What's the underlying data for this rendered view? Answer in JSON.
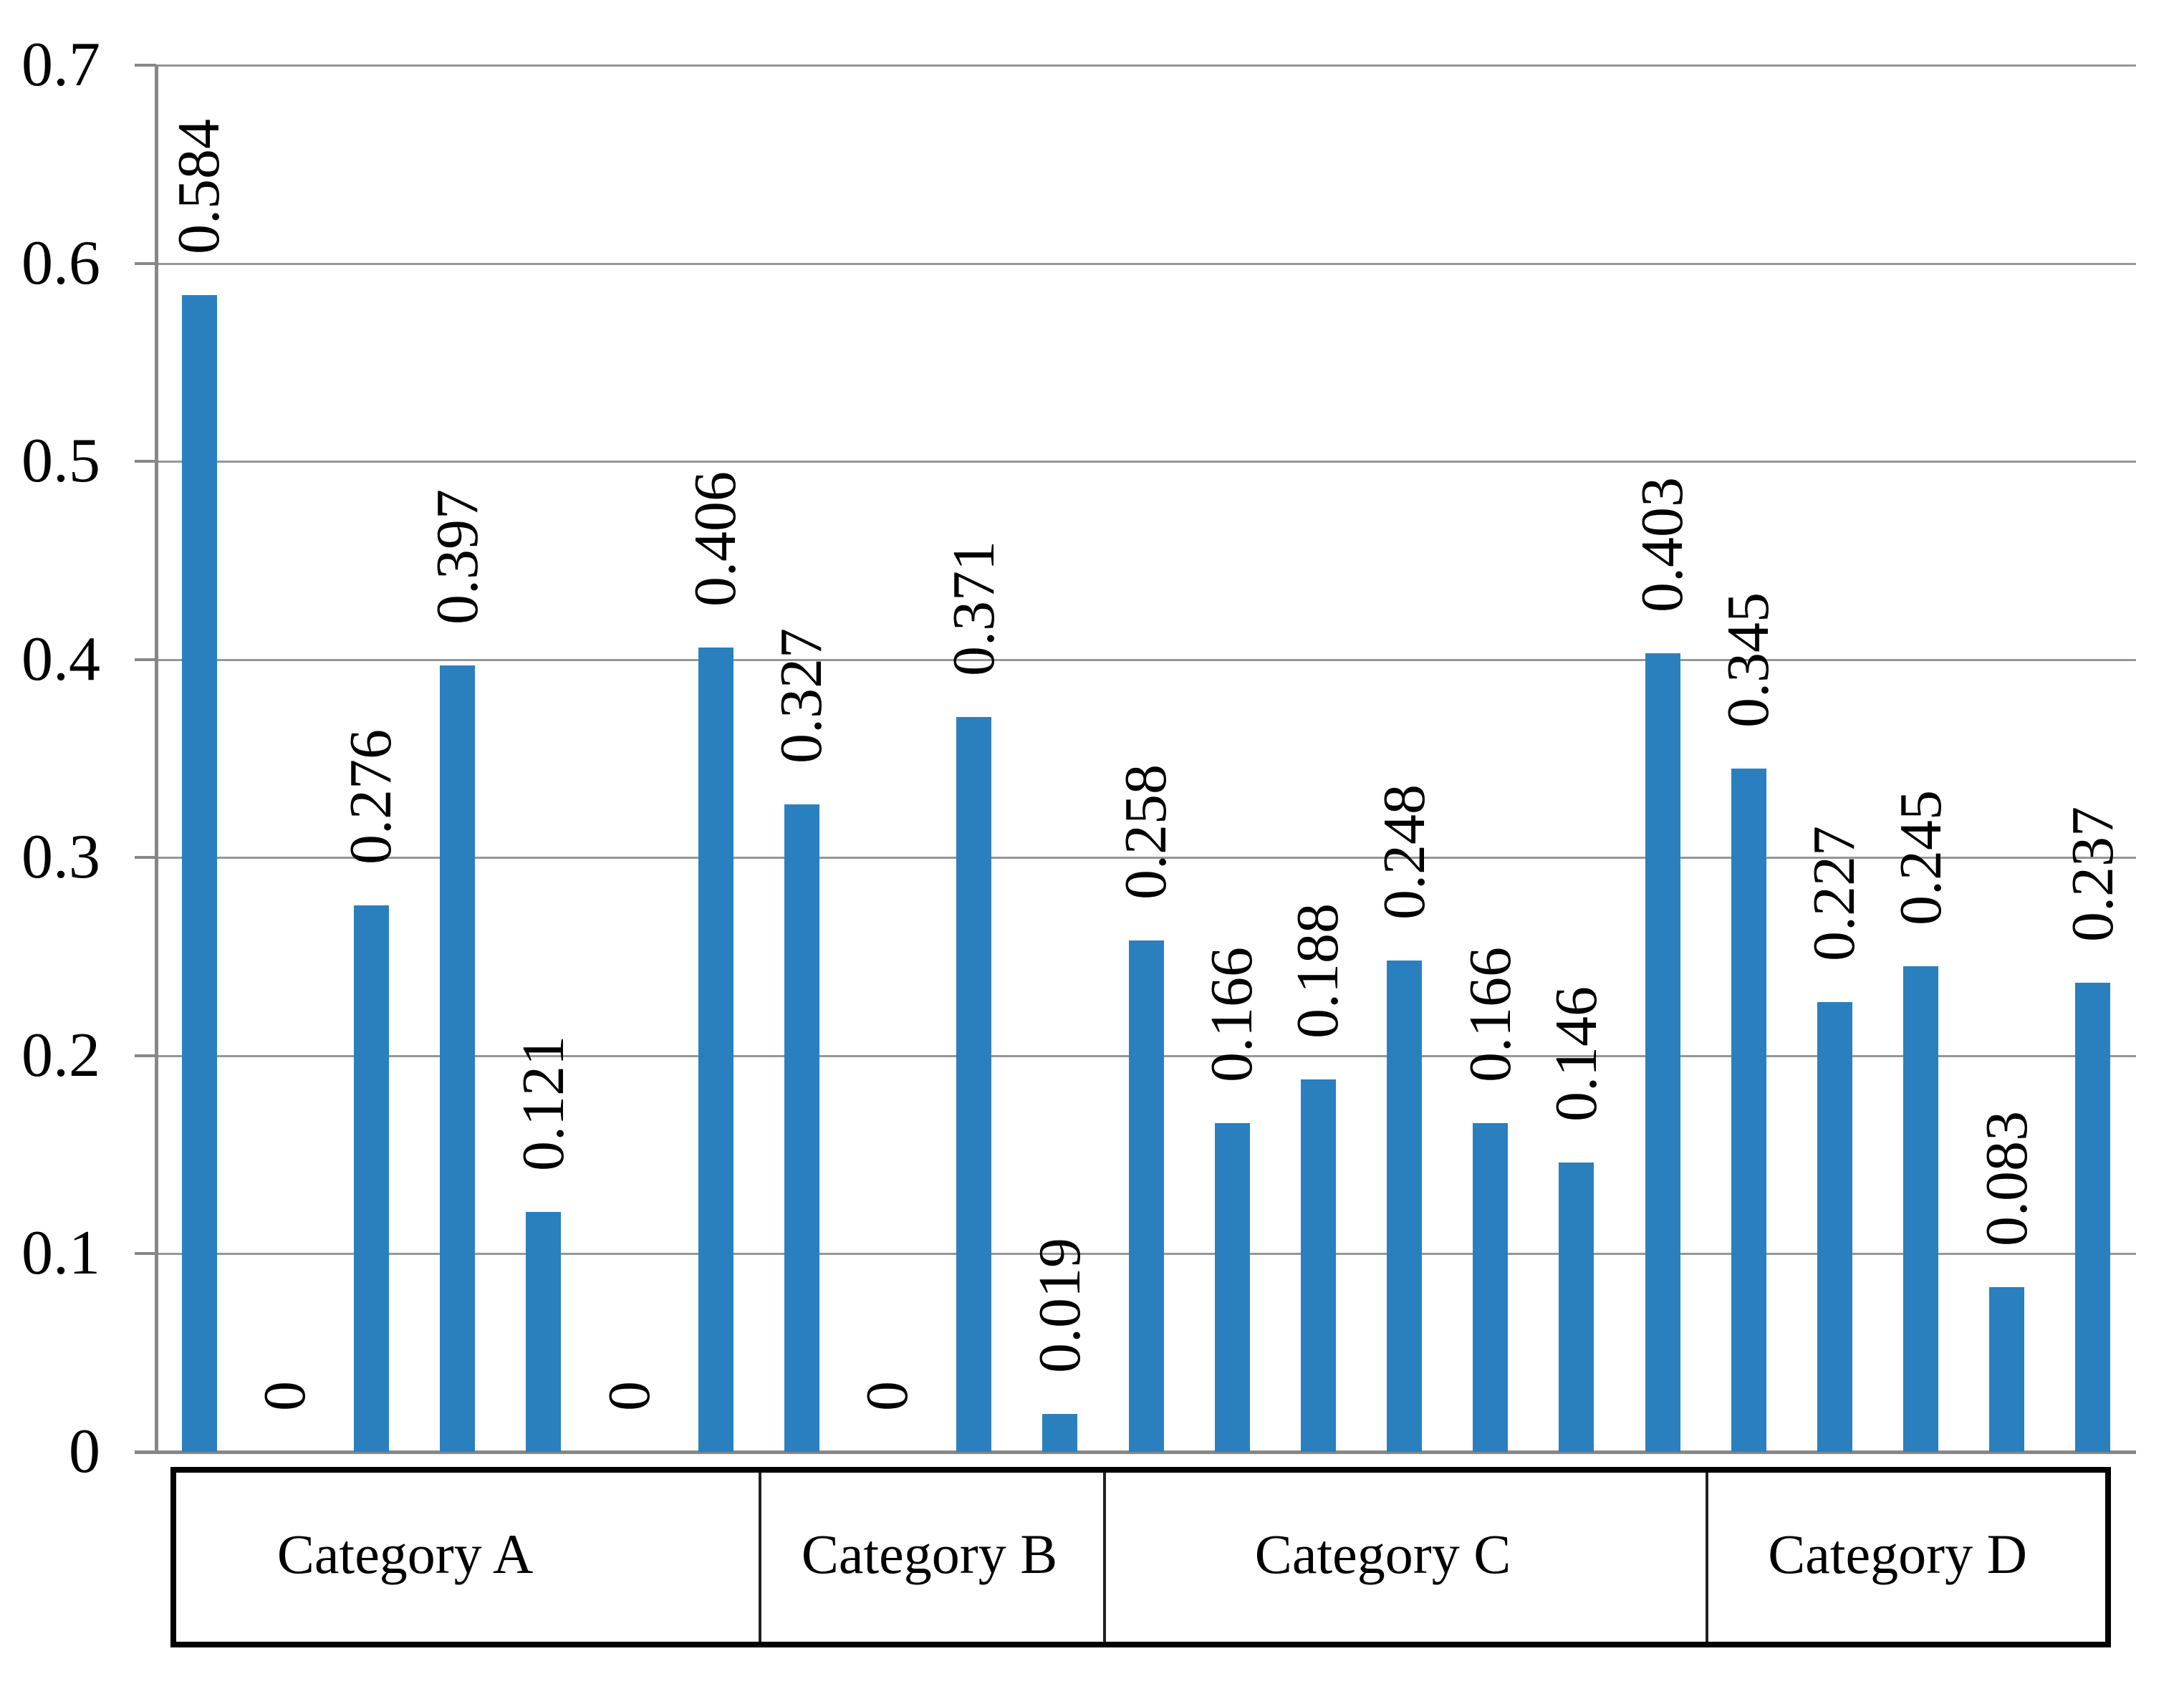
{
  "chart_data": {
    "type": "bar",
    "title": "",
    "xlabel": "",
    "ylabel": "",
    "ylim": [
      0,
      0.7
    ],
    "ytick_step": 0.1,
    "yticks_top_to_bottom": [
      "0.7",
      "0.6",
      "0.5",
      "0.4",
      "0.3",
      "0.2",
      "0.1",
      "0"
    ],
    "grid": true,
    "legend": null,
    "bar_color": "#2A80BE",
    "groups": [
      {
        "label": "Category A",
        "values": [
          0.584,
          0,
          0.276,
          0.397,
          0.121,
          0,
          0.406
        ],
        "value_labels": [
          "0.584",
          "0",
          "0.276",
          "0.397",
          "0.121",
          "0",
          "0.406"
        ]
      },
      {
        "label": "Category B",
        "values": [
          0.327,
          0,
          0.371,
          0.019
        ],
        "value_labels": [
          "0.327",
          "0",
          "0.371",
          "0.019"
        ]
      },
      {
        "label": "Category C",
        "values": [
          0.258,
          0.166,
          0.188,
          0.248,
          0.166,
          0.146,
          0.403
        ],
        "value_labels": [
          "0.258",
          "0.166",
          "0.188",
          "0.248",
          "0.166",
          "0.146",
          "0.403"
        ]
      },
      {
        "label": "Category D",
        "values": [
          0.345,
          0.227,
          0.245,
          0.083,
          0.237
        ],
        "value_labels": [
          "0.345",
          "0.227",
          "0.245",
          "0.083",
          "0.237"
        ]
      }
    ]
  }
}
